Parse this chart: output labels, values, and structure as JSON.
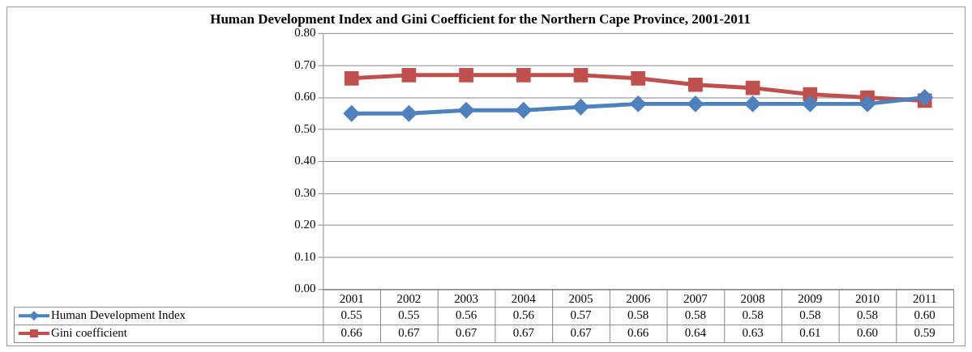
{
  "chart_data": {
    "type": "line",
    "title": "Human Development Index and Gini Coefficient for the Northern Cape Province, 2001-2011",
    "categories": [
      "2001",
      "2002",
      "2003",
      "2004",
      "2005",
      "2006",
      "2007",
      "2008",
      "2009",
      "2010",
      "2011"
    ],
    "series": [
      {
        "name": "Human Development Index",
        "color": "#4f81bd",
        "marker": "diamond",
        "values": [
          0.55,
          0.55,
          0.56,
          0.56,
          0.57,
          0.58,
          0.58,
          0.58,
          0.58,
          0.58,
          0.6
        ],
        "value_labels": [
          "0.55",
          "0.55",
          "0.56",
          "0.56",
          "0.57",
          "0.58",
          "0.58",
          "0.58",
          "0.58",
          "0.58",
          "0.60"
        ]
      },
      {
        "name": "Gini coefficient",
        "color": "#c0504d",
        "marker": "square",
        "values": [
          0.66,
          0.67,
          0.67,
          0.67,
          0.67,
          0.66,
          0.64,
          0.63,
          0.61,
          0.6,
          0.59
        ],
        "value_labels": [
          "0.66",
          "0.67",
          "0.67",
          "0.67",
          "0.67",
          "0.66",
          "0.64",
          "0.63",
          "0.61",
          "0.60",
          "0.59"
        ]
      }
    ],
    "ylim": [
      0,
      0.8
    ],
    "yticks": [
      {
        "value": 0,
        "label": "0.00"
      },
      {
        "value": 0.1,
        "label": "0.10"
      },
      {
        "value": 0.2,
        "label": "0.20"
      },
      {
        "value": 0.3,
        "label": "0.30"
      },
      {
        "value": 0.4,
        "label": "0.40"
      },
      {
        "value": 0.5,
        "label": "0.50"
      },
      {
        "value": 0.6,
        "label": "0.60"
      },
      {
        "value": 0.7,
        "label": "0.70"
      },
      {
        "value": 0.8,
        "label": "0.80"
      }
    ],
    "grid": "y",
    "legend": "bottom left",
    "line_style": "solid"
  }
}
